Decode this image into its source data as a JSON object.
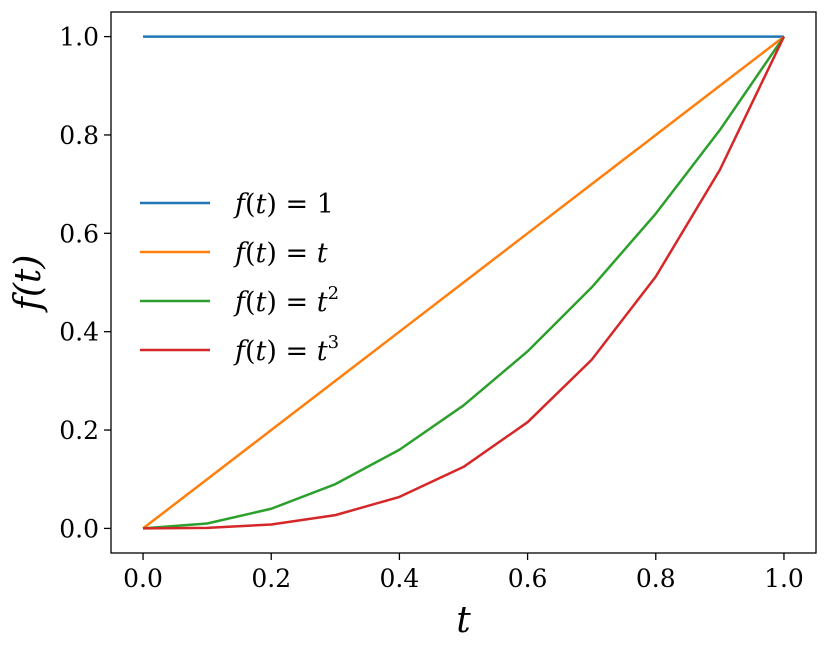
{
  "chart_data": {
    "type": "line",
    "title": "",
    "xlabel": "t",
    "ylabel": "f(t)",
    "xlim": [
      -0.05,
      1.05
    ],
    "ylim": [
      -0.05,
      1.05
    ],
    "xticks": [
      0.0,
      0.2,
      0.4,
      0.6,
      0.8,
      1.0
    ],
    "xtick_labels": [
      "0.0",
      "0.2",
      "0.4",
      "0.6",
      "0.8",
      "1.0"
    ],
    "yticks": [
      0.0,
      0.2,
      0.4,
      0.6,
      0.8,
      1.0
    ],
    "ytick_labels": [
      "0.0",
      "0.2",
      "0.4",
      "0.6",
      "0.8",
      "1.0"
    ],
    "grid": false,
    "legend_position": "center-left",
    "series": [
      {
        "name": "f(t) = 1",
        "legend_parts": {
          "lhs": "f",
          "arg": "t",
          "rhs": "1",
          "rhs_italic": false,
          "sup": ""
        },
        "color": "#1f77b4",
        "x": [
          0.0,
          0.1,
          0.2,
          0.3,
          0.4,
          0.5,
          0.6,
          0.7,
          0.8,
          0.9,
          1.0
        ],
        "y": [
          1.0,
          1.0,
          1.0,
          1.0,
          1.0,
          1.0,
          1.0,
          1.0,
          1.0,
          1.0,
          1.0
        ]
      },
      {
        "name": "f(t) = t",
        "legend_parts": {
          "lhs": "f",
          "arg": "t",
          "rhs": "t",
          "rhs_italic": true,
          "sup": ""
        },
        "color": "#ff7f0e",
        "x": [
          0.0,
          0.1,
          0.2,
          0.3,
          0.4,
          0.5,
          0.6,
          0.7,
          0.8,
          0.9,
          1.0
        ],
        "y": [
          0.0,
          0.1,
          0.2,
          0.3,
          0.4,
          0.5,
          0.6,
          0.7,
          0.8,
          0.9,
          1.0
        ]
      },
      {
        "name": "f(t) = t^2",
        "legend_parts": {
          "lhs": "f",
          "arg": "t",
          "rhs": "t",
          "rhs_italic": true,
          "sup": "2"
        },
        "color": "#2ca02c",
        "x": [
          0.0,
          0.1,
          0.2,
          0.3,
          0.4,
          0.5,
          0.6,
          0.7,
          0.8,
          0.9,
          1.0
        ],
        "y": [
          0.0,
          0.01,
          0.04,
          0.09,
          0.16,
          0.25,
          0.36,
          0.49,
          0.64,
          0.81,
          1.0
        ]
      },
      {
        "name": "f(t) = t^3",
        "legend_parts": {
          "lhs": "f",
          "arg": "t",
          "rhs": "t",
          "rhs_italic": true,
          "sup": "3"
        },
        "color": "#d62728",
        "x": [
          0.0,
          0.1,
          0.2,
          0.3,
          0.4,
          0.5,
          0.6,
          0.7,
          0.8,
          0.9,
          1.0
        ],
        "y": [
          0.0,
          0.001,
          0.008,
          0.027,
          0.064,
          0.125,
          0.216,
          0.343,
          0.512,
          0.729,
          1.0
        ]
      }
    ]
  }
}
